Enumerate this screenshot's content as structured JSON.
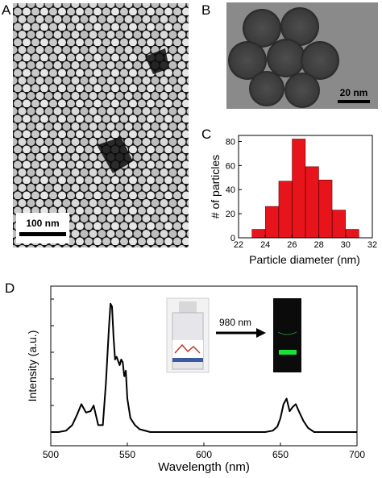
{
  "figure": {
    "panel_a": {
      "letter": "A",
      "scale_bar": "100 nm"
    },
    "panel_b": {
      "letter": "B",
      "scale_bar": "20 nm"
    },
    "panel_c": {
      "letter": "C"
    },
    "panel_d": {
      "letter": "D",
      "excitation_label": "980 nm"
    }
  },
  "colors": {
    "histogram_bar": "#e8141b",
    "spectrum_line": "#000000",
    "emission_glow": "#18e23a"
  },
  "chart_data": [
    {
      "id": "C",
      "type": "bar",
      "xlabel": "Particle diameter (nm)",
      "ylabel": "# of particles",
      "xlim": [
        22,
        32
      ],
      "ylim": [
        0,
        85
      ],
      "xticks": [
        22,
        24,
        26,
        28,
        30,
        32
      ],
      "xtick_labels": [
        "22",
        "24",
        "26",
        "28",
        "30",
        "32"
      ],
      "yticks": [
        0,
        20,
        40,
        60,
        80
      ],
      "ytick_labels": [
        "0",
        "20",
        "40",
        "60",
        "80"
      ],
      "x": [
        23.5,
        24.5,
        25.5,
        26.5,
        27.5,
        28.5,
        29.5,
        30.5
      ],
      "values": [
        7,
        26,
        47,
        82,
        59,
        48,
        23,
        7
      ],
      "grid": false
    },
    {
      "id": "D",
      "type": "line",
      "xlabel": "Wavelength (nm)",
      "ylabel": "Intensity (a.u.)",
      "xlim": [
        500,
        700
      ],
      "xticks": [
        500,
        550,
        600,
        650,
        700
      ],
      "xtick_labels": [
        "500",
        "550",
        "600",
        "650",
        "700"
      ],
      "y_tick_labels_shown": false,
      "grid": false,
      "x": [
        500,
        505,
        510,
        514,
        517,
        520,
        523,
        526,
        528,
        531,
        534,
        536,
        538,
        539,
        540,
        541,
        542,
        543,
        545,
        546,
        547,
        548,
        549,
        550,
        552,
        555,
        558,
        565,
        600,
        640,
        645,
        648,
        650,
        652,
        654,
        656,
        658,
        660,
        662,
        665,
        668,
        672,
        680,
        700
      ],
      "y": [
        0.0,
        0.0,
        0.01,
        0.05,
        0.12,
        0.2,
        0.14,
        0.15,
        0.19,
        0.05,
        0.05,
        0.35,
        0.75,
        0.92,
        0.9,
        0.68,
        0.52,
        0.54,
        0.48,
        0.52,
        0.5,
        0.4,
        0.44,
        0.24,
        0.1,
        0.05,
        0.02,
        0.0,
        0.0,
        0.0,
        0.01,
        0.04,
        0.1,
        0.2,
        0.24,
        0.15,
        0.18,
        0.2,
        0.15,
        0.08,
        0.03,
        0.0,
        0.0,
        0.0
      ]
    }
  ]
}
